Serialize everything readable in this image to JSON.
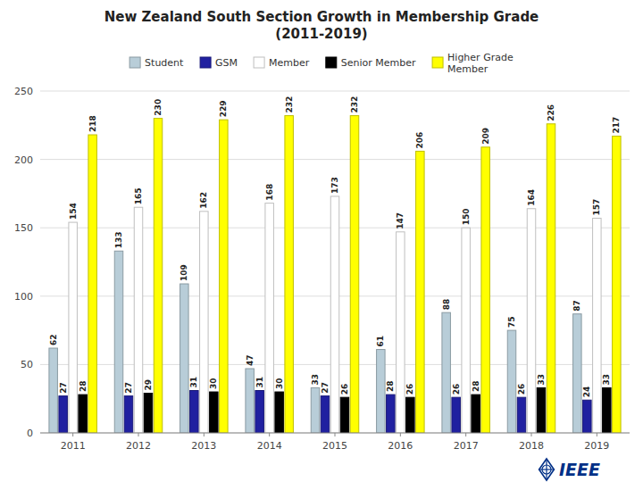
{
  "chart_data": {
    "type": "bar",
    "title": "New Zealand South Section Growth in Membership Grade\n(2011-2019)",
    "categories": [
      "2011",
      "2012",
      "2013",
      "2014",
      "2015",
      "2016",
      "2017",
      "2018",
      "2019"
    ],
    "series": [
      {
        "name": "Student",
        "color": "#B8CDD8",
        "values": [
          62,
          133,
          109,
          47,
          33,
          61,
          88,
          75,
          87
        ]
      },
      {
        "name": "GSM",
        "color": "#2020A0",
        "values": [
          27,
          27,
          31,
          31,
          27,
          28,
          26,
          26,
          24
        ]
      },
      {
        "name": "Member",
        "color": "#FFFFFF",
        "values": [
          154,
          165,
          162,
          168,
          173,
          147,
          150,
          164,
          157
        ]
      },
      {
        "name": "Senior Member",
        "color": "#000000",
        "values": [
          28,
          29,
          30,
          30,
          26,
          26,
          28,
          33,
          33
        ]
      },
      {
        "name": "Higher Grade\nMember",
        "color": "#FFFF00",
        "values": [
          218,
          230,
          229,
          232,
          232,
          206,
          209,
          226,
          217
        ]
      }
    ],
    "ylim": [
      0,
      250
    ],
    "yticks": [
      0,
      50,
      100,
      150,
      200,
      250
    ],
    "grid": true,
    "legend": "top",
    "data_labels": true,
    "annotations": [
      "IEEE"
    ]
  }
}
